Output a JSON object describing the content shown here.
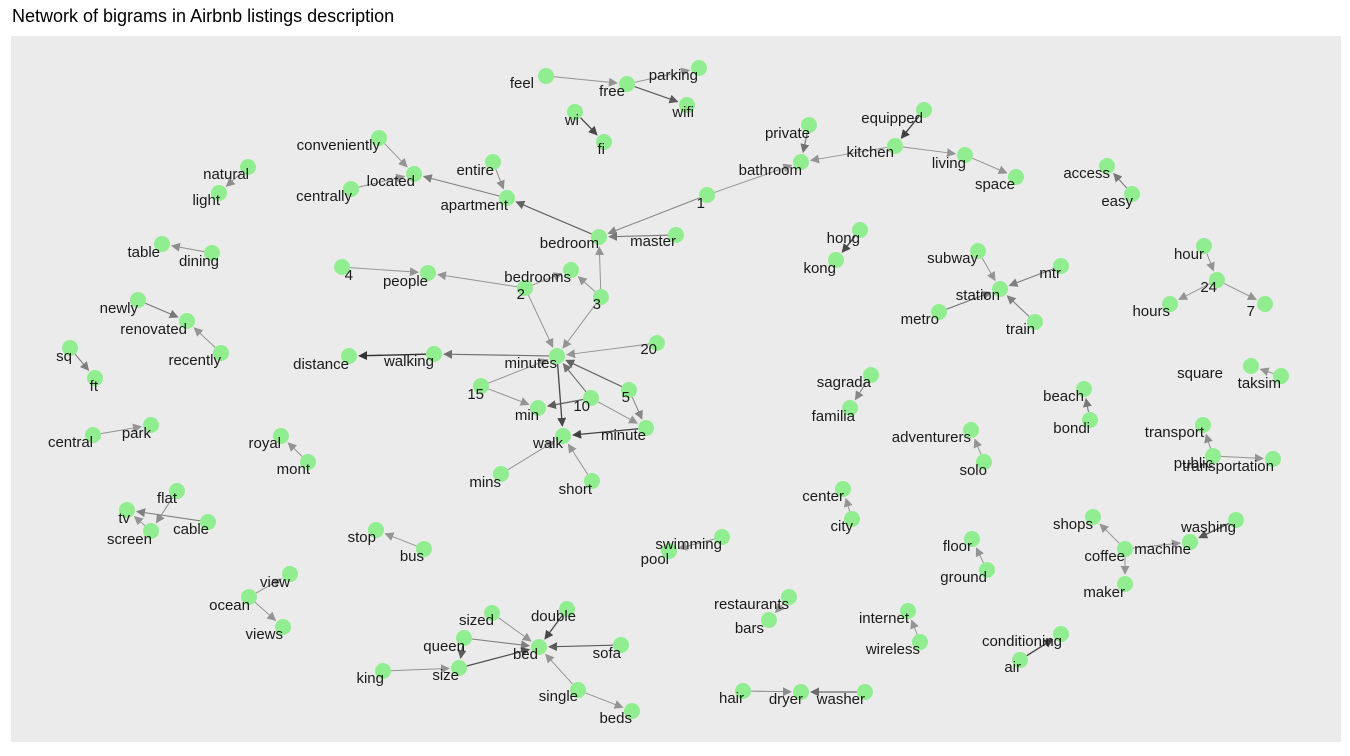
{
  "title": "Network of bigrams in Airbnb listings description",
  "colors": {
    "panel": "#ebebeb",
    "node": "#90ee90",
    "edge_dark": "#333333",
    "edge_light": "#bdbdbd",
    "text": "#1a1a1a"
  },
  "nodes": [
    {
      "id": "feel",
      "label": "feel"
    },
    {
      "id": "free",
      "label": "free"
    },
    {
      "id": "parking",
      "label": "parking"
    },
    {
      "id": "wifi",
      "label": "wifi"
    },
    {
      "id": "wi",
      "label": "wi"
    },
    {
      "id": "fi",
      "label": "fi"
    },
    {
      "id": "conveniently",
      "label": "conveniently"
    },
    {
      "id": "located",
      "label": "located"
    },
    {
      "id": "centrally",
      "label": "centrally"
    },
    {
      "id": "entire",
      "label": "entire"
    },
    {
      "id": "apartment",
      "label": "apartment"
    },
    {
      "id": "natural",
      "label": "natural"
    },
    {
      "id": "light",
      "label": "light"
    },
    {
      "id": "private",
      "label": "private"
    },
    {
      "id": "bathroom",
      "label": "bathroom"
    },
    {
      "id": "equipped",
      "label": "equipped"
    },
    {
      "id": "kitchen",
      "label": "kitchen"
    },
    {
      "id": "living",
      "label": "living"
    },
    {
      "id": "space",
      "label": "space"
    },
    {
      "id": "access",
      "label": "access"
    },
    {
      "id": "easy",
      "label": "easy"
    },
    {
      "id": "one",
      "label": "1"
    },
    {
      "id": "table",
      "label": "table"
    },
    {
      "id": "dining",
      "label": "dining"
    },
    {
      "id": "bedroom",
      "label": "bedroom"
    },
    {
      "id": "master",
      "label": "master"
    },
    {
      "id": "hong",
      "label": "hong"
    },
    {
      "id": "kong",
      "label": "kong"
    },
    {
      "id": "hour",
      "label": "hour"
    },
    {
      "id": "twentyfour",
      "label": "24"
    },
    {
      "id": "hours",
      "label": "hours"
    },
    {
      "id": "seven",
      "label": "7"
    },
    {
      "id": "four",
      "label": "4"
    },
    {
      "id": "people",
      "label": "people"
    },
    {
      "id": "bedrooms",
      "label": "bedrooms"
    },
    {
      "id": "two",
      "label": "2"
    },
    {
      "id": "three",
      "label": "3"
    },
    {
      "id": "subway",
      "label": "subway"
    },
    {
      "id": "mtr",
      "label": "mtr"
    },
    {
      "id": "station",
      "label": "station"
    },
    {
      "id": "metro",
      "label": "metro"
    },
    {
      "id": "train",
      "label": "train"
    },
    {
      "id": "newly",
      "label": "newly"
    },
    {
      "id": "renovated",
      "label": "renovated"
    },
    {
      "id": "recently",
      "label": "recently"
    },
    {
      "id": "sq",
      "label": "sq"
    },
    {
      "id": "ft",
      "label": "ft"
    },
    {
      "id": "distance",
      "label": "distance"
    },
    {
      "id": "walking",
      "label": "walking"
    },
    {
      "id": "minutes",
      "label": "minutes"
    },
    {
      "id": "twenty",
      "label": "20"
    },
    {
      "id": "sagrada",
      "label": "sagrada"
    },
    {
      "id": "familia",
      "label": "familia"
    },
    {
      "id": "square",
      "label": "square"
    },
    {
      "id": "taksim",
      "label": "taksim"
    },
    {
      "id": "beach",
      "label": "beach"
    },
    {
      "id": "bondi",
      "label": "bondi"
    },
    {
      "id": "fifteen",
      "label": "15"
    },
    {
      "id": "min",
      "label": "min"
    },
    {
      "id": "ten",
      "label": "10"
    },
    {
      "id": "five",
      "label": "5"
    },
    {
      "id": "minute",
      "label": "minute"
    },
    {
      "id": "walk",
      "label": "walk"
    },
    {
      "id": "central",
      "label": "central"
    },
    {
      "id": "park",
      "label": "park"
    },
    {
      "id": "royal",
      "label": "royal"
    },
    {
      "id": "mont",
      "label": "mont"
    },
    {
      "id": "adventurers",
      "label": "adventurers"
    },
    {
      "id": "solo",
      "label": "solo"
    },
    {
      "id": "transport",
      "label": "transport"
    },
    {
      "id": "public",
      "label": "public"
    },
    {
      "id": "transportation",
      "label": "transportation"
    },
    {
      "id": "mins",
      "label": "mins"
    },
    {
      "id": "short",
      "label": "short"
    },
    {
      "id": "center",
      "label": "center"
    },
    {
      "id": "city",
      "label": "city"
    },
    {
      "id": "flat",
      "label": "flat"
    },
    {
      "id": "tv",
      "label": "tv"
    },
    {
      "id": "cable",
      "label": "cable"
    },
    {
      "id": "screen",
      "label": "screen"
    },
    {
      "id": "shops",
      "label": "shops"
    },
    {
      "id": "washing",
      "label": "washing"
    },
    {
      "id": "coffee",
      "label": "coffee"
    },
    {
      "id": "machine",
      "label": "machine"
    },
    {
      "id": "maker",
      "label": "maker"
    },
    {
      "id": "stop",
      "label": "stop"
    },
    {
      "id": "bus",
      "label": "bus"
    },
    {
      "id": "swimming",
      "label": "swimming"
    },
    {
      "id": "pool",
      "label": "pool"
    },
    {
      "id": "floor",
      "label": "floor"
    },
    {
      "id": "ground",
      "label": "ground"
    },
    {
      "id": "view",
      "label": "view"
    },
    {
      "id": "ocean",
      "label": "ocean"
    },
    {
      "id": "views",
      "label": "views"
    },
    {
      "id": "restaurants",
      "label": "restaurants"
    },
    {
      "id": "bars",
      "label": "bars"
    },
    {
      "id": "internet",
      "label": "internet"
    },
    {
      "id": "wireless",
      "label": "wireless"
    },
    {
      "id": "sized",
      "label": "sized"
    },
    {
      "id": "double",
      "label": "double"
    },
    {
      "id": "queen",
      "label": "queen"
    },
    {
      "id": "bed",
      "label": "bed"
    },
    {
      "id": "sofa",
      "label": "sofa"
    },
    {
      "id": "king",
      "label": "king"
    },
    {
      "id": "size",
      "label": "size"
    },
    {
      "id": "single",
      "label": "single"
    },
    {
      "id": "beds",
      "label": "beds"
    },
    {
      "id": "conditioning",
      "label": "conditioning"
    },
    {
      "id": "air",
      "label": "air"
    },
    {
      "id": "hair",
      "label": "hair"
    },
    {
      "id": "dryer",
      "label": "dryer"
    },
    {
      "id": "washer",
      "label": "washer"
    }
  ],
  "edges": [
    {
      "from": "feel",
      "to": "free",
      "strength": 0.3
    },
    {
      "from": "free",
      "to": "parking",
      "strength": 0.3
    },
    {
      "from": "free",
      "to": "wifi",
      "strength": 0.7
    },
    {
      "from": "wi",
      "to": "fi",
      "strength": 0.85
    },
    {
      "from": "conveniently",
      "to": "located",
      "strength": 0.3
    },
    {
      "from": "centrally",
      "to": "located",
      "strength": 0.3
    },
    {
      "from": "apartment",
      "to": "located",
      "strength": 0.45
    },
    {
      "from": "entire",
      "to": "apartment",
      "strength": 0.35
    },
    {
      "from": "natural",
      "to": "light",
      "strength": 0.35
    },
    {
      "from": "private",
      "to": "bathroom",
      "strength": 0.55
    },
    {
      "from": "kitchen",
      "to": "bathroom",
      "strength": 0.3
    },
    {
      "from": "equipped",
      "to": "kitchen",
      "strength": 0.9
    },
    {
      "from": "kitchen",
      "to": "living",
      "strength": 0.3
    },
    {
      "from": "living",
      "to": "space",
      "strength": 0.3
    },
    {
      "from": "easy",
      "to": "access",
      "strength": 0.5
    },
    {
      "from": "one",
      "to": "bathroom",
      "strength": 0.3
    },
    {
      "from": "one",
      "to": "bedroom",
      "strength": 0.4
    },
    {
      "from": "bedroom",
      "to": "apartment",
      "strength": 0.65
    },
    {
      "from": "master",
      "to": "bedroom",
      "strength": 0.5
    },
    {
      "from": "dining",
      "to": "table",
      "strength": 0.35
    },
    {
      "from": "hong",
      "to": "kong",
      "strength": 0.85
    },
    {
      "from": "hour",
      "to": "twentyfour",
      "strength": 0.3
    },
    {
      "from": "twentyfour",
      "to": "hours",
      "strength": 0.3
    },
    {
      "from": "twentyfour",
      "to": "seven",
      "strength": 0.3
    },
    {
      "from": "four",
      "to": "people",
      "strength": 0.3
    },
    {
      "from": "two",
      "to": "people",
      "strength": 0.3
    },
    {
      "from": "two",
      "to": "bedrooms",
      "strength": 0.3
    },
    {
      "from": "three",
      "to": "bedrooms",
      "strength": 0.3
    },
    {
      "from": "three",
      "to": "bedroom",
      "strength": 0.3
    },
    {
      "from": "two",
      "to": "minutes",
      "strength": 0.3
    },
    {
      "from": "three",
      "to": "minutes",
      "strength": 0.3
    },
    {
      "from": "subway",
      "to": "station",
      "strength": 0.3
    },
    {
      "from": "mtr",
      "to": "station",
      "strength": 0.45
    },
    {
      "from": "metro",
      "to": "station",
      "strength": 0.5
    },
    {
      "from": "train",
      "to": "station",
      "strength": 0.45
    },
    {
      "from": "newly",
      "to": "renovated",
      "strength": 0.5
    },
    {
      "from": "recently",
      "to": "renovated",
      "strength": 0.3
    },
    {
      "from": "sq",
      "to": "ft",
      "strength": 0.45
    },
    {
      "from": "walking",
      "to": "distance",
      "strength": 1.0
    },
    {
      "from": "minutes",
      "to": "walking",
      "strength": 0.55
    },
    {
      "from": "twenty",
      "to": "minutes",
      "strength": 0.3
    },
    {
      "from": "minutes",
      "to": "walk",
      "strength": 0.85
    },
    {
      "from": "fifteen",
      "to": "minutes",
      "strength": 0.3
    },
    {
      "from": "fifteen",
      "to": "min",
      "strength": 0.3
    },
    {
      "from": "ten",
      "to": "min",
      "strength": 0.7
    },
    {
      "from": "ten",
      "to": "minutes",
      "strength": 0.55
    },
    {
      "from": "ten",
      "to": "minute",
      "strength": 0.3
    },
    {
      "from": "five",
      "to": "minutes",
      "strength": 0.65
    },
    {
      "from": "five",
      "to": "minute",
      "strength": 0.4
    },
    {
      "from": "minute",
      "to": "walk",
      "strength": 0.9
    },
    {
      "from": "mins",
      "to": "walk",
      "strength": 0.3
    },
    {
      "from": "short",
      "to": "walk",
      "strength": 0.3
    },
    {
      "from": "sagrada",
      "to": "familia",
      "strength": 0.4
    },
    {
      "from": "taksim",
      "to": "square",
      "strength": 0.3
    },
    {
      "from": "bondi",
      "to": "beach",
      "strength": 0.5
    },
    {
      "from": "central",
      "to": "park",
      "strength": 0.3
    },
    {
      "from": "mont",
      "to": "royal",
      "strength": 0.3
    },
    {
      "from": "solo",
      "to": "adventurers",
      "strength": 0.3
    },
    {
      "from": "public",
      "to": "transport",
      "strength": 0.35
    },
    {
      "from": "public",
      "to": "transportation",
      "strength": 0.3
    },
    {
      "from": "city",
      "to": "center",
      "strength": 0.3
    },
    {
      "from": "flat",
      "to": "screen",
      "strength": 0.35
    },
    {
      "from": "cable",
      "to": "tv",
      "strength": 0.45
    },
    {
      "from": "screen",
      "to": "tv",
      "strength": 0.3
    },
    {
      "from": "coffee",
      "to": "shops",
      "strength": 0.3
    },
    {
      "from": "washing",
      "to": "machine",
      "strength": 0.75
    },
    {
      "from": "coffee",
      "to": "machine",
      "strength": 0.3
    },
    {
      "from": "coffee",
      "to": "maker",
      "strength": 0.3
    },
    {
      "from": "bus",
      "to": "stop",
      "strength": 0.3
    },
    {
      "from": "swimming",
      "to": "pool",
      "strength": 0.3
    },
    {
      "from": "ground",
      "to": "floor",
      "strength": 0.3
    },
    {
      "from": "ocean",
      "to": "view",
      "strength": 0.3
    },
    {
      "from": "ocean",
      "to": "views",
      "strength": 0.3
    },
    {
      "from": "restaurants",
      "to": "bars",
      "strength": 0.3
    },
    {
      "from": "wireless",
      "to": "internet",
      "strength": 0.3
    },
    {
      "from": "sized",
      "to": "bed",
      "strength": 0.3
    },
    {
      "from": "double",
      "to": "bed",
      "strength": 0.85
    },
    {
      "from": "queen",
      "to": "bed",
      "strength": 0.45
    },
    {
      "from": "sofa",
      "to": "bed",
      "strength": 0.7
    },
    {
      "from": "king",
      "to": "size",
      "strength": 0.3
    },
    {
      "from": "queen",
      "to": "size",
      "strength": 0.7
    },
    {
      "from": "size",
      "to": "bed",
      "strength": 0.8
    },
    {
      "from": "single",
      "to": "bed",
      "strength": 0.3
    },
    {
      "from": "single",
      "to": "beds",
      "strength": 0.3
    },
    {
      "from": "air",
      "to": "conditioning",
      "strength": 0.9
    },
    {
      "from": "hair",
      "to": "dryer",
      "strength": 0.35
    },
    {
      "from": "washer",
      "to": "dryer",
      "strength": 0.6
    }
  ]
}
